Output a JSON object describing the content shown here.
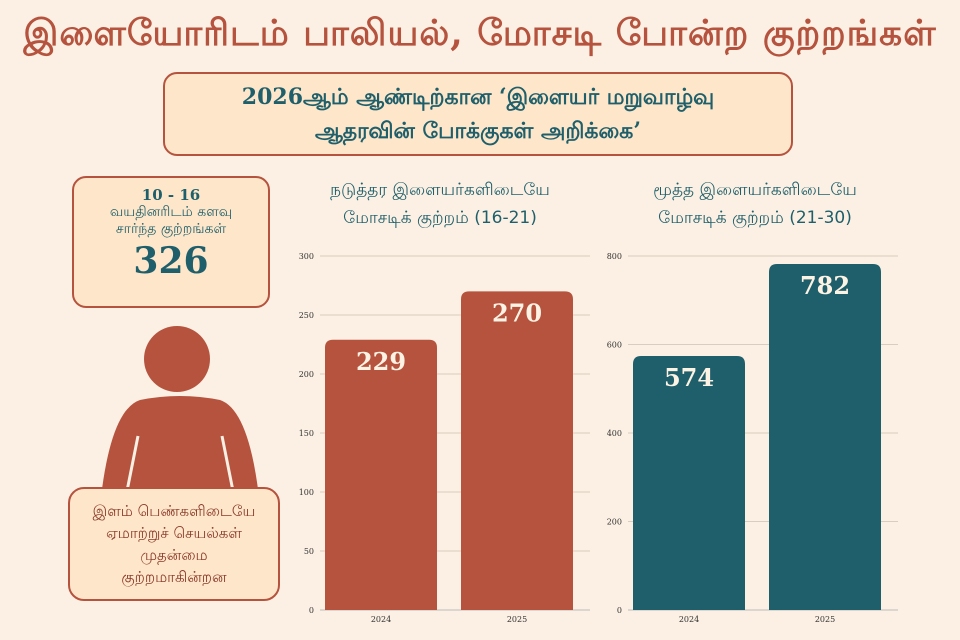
{
  "title": "இளையோரிடம் பாலியல், மோசடி போன்ற குற்றங்கள்",
  "subtitle": {
    "line1": "2026ஆம் ஆண்டிற்கான ‘இளையர் மறுவாழ்வு",
    "line2": "ஆதரவின் போக்குகள் அறிக்கை’"
  },
  "stat": {
    "range": "10 - 16",
    "label_line1": "வயதினரிடம் களவு",
    "label_line2": "சார்ந்த குற்றங்கள்",
    "value": "326"
  },
  "note": {
    "lines": [
      "இளம் பெண்களிடையே",
      "ஏமாற்றுச் செயல்கள்",
      "முதன்மை",
      "குற்றமாகின்றன"
    ]
  },
  "icons": [
    "person-icon"
  ],
  "colors": {
    "accent": "#b5533e",
    "teal": "#1f5f6b",
    "background": "#fbf0e3",
    "box": "#fde6c9"
  },
  "chart_data": [
    {
      "type": "bar",
      "title_line1": "நடுத்தர இளையர்களிடையே",
      "title_line2": "மோசடிக் குற்றம் (16-21)",
      "categories": [
        "2024",
        "2025"
      ],
      "values": [
        229,
        270
      ],
      "ylim": [
        0,
        300
      ],
      "yticks": [
        0,
        50,
        100,
        150,
        200,
        250,
        300
      ],
      "color": "#b5533e",
      "grid": true
    },
    {
      "type": "bar",
      "title_line1": "மூத்த இளையர்களிடையே",
      "title_line2": "மோசடிக் குற்றம் (21-30)",
      "categories": [
        "2024",
        "2025"
      ],
      "values": [
        574,
        782
      ],
      "ylim": [
        0,
        800
      ],
      "yticks": [
        0,
        200,
        400,
        600,
        800
      ],
      "color": "#1f5f6b",
      "grid": true
    }
  ]
}
